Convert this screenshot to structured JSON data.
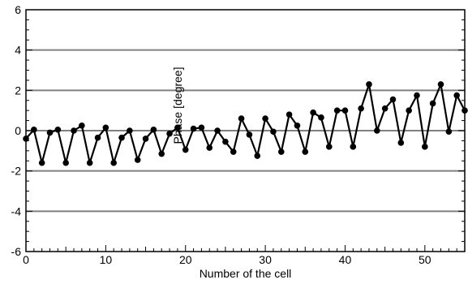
{
  "chart_data": {
    "type": "line",
    "title": "",
    "xlabel": "Number of the cell",
    "ylabel": "Phase [degree]",
    "xlim": [
      0,
      55
    ],
    "ylim": [
      -6,
      6
    ],
    "x_ticks": [
      0,
      10,
      20,
      30,
      40,
      50
    ],
    "y_ticks": [
      -6,
      -4,
      -2,
      0,
      2,
      4,
      6
    ],
    "grid": "horizontal",
    "legend": "none",
    "colors": {
      "line": "#000000",
      "grid": "#808080",
      "axes": "#000000"
    },
    "series": [
      {
        "x": [
          0,
          1,
          2,
          3,
          4,
          5,
          6,
          7,
          8,
          9,
          10,
          11,
          12,
          13,
          14,
          15,
          16,
          17,
          18,
          19,
          20,
          21,
          22,
          23,
          24,
          25,
          26,
          27,
          28,
          29,
          30,
          31,
          32,
          33,
          34,
          35,
          36,
          37,
          38,
          39,
          40,
          41,
          42,
          43,
          44,
          45,
          46,
          47,
          48,
          49,
          50,
          51,
          52,
          53,
          54,
          55
        ],
        "values": [
          -0.4,
          0.05,
          -1.6,
          -0.1,
          0.05,
          -1.6,
          0.0,
          0.25,
          -1.6,
          -0.35,
          0.15,
          -1.6,
          -0.35,
          0.0,
          -1.45,
          -0.4,
          0.05,
          -1.15,
          -0.15,
          0.15,
          -0.95,
          0.1,
          0.15,
          -0.85,
          0.0,
          -0.55,
          -1.05,
          0.6,
          -0.2,
          -1.25,
          0.6,
          -0.05,
          -1.05,
          0.8,
          0.25,
          -1.05,
          0.9,
          0.65,
          -0.8,
          1.0,
          1.0,
          -0.8,
          1.1,
          2.3,
          0.0,
          1.1,
          1.55,
          -0.6,
          1.0,
          1.75,
          -0.8,
          1.35,
          2.3,
          -0.05,
          1.75,
          1.0
        ]
      }
    ]
  }
}
